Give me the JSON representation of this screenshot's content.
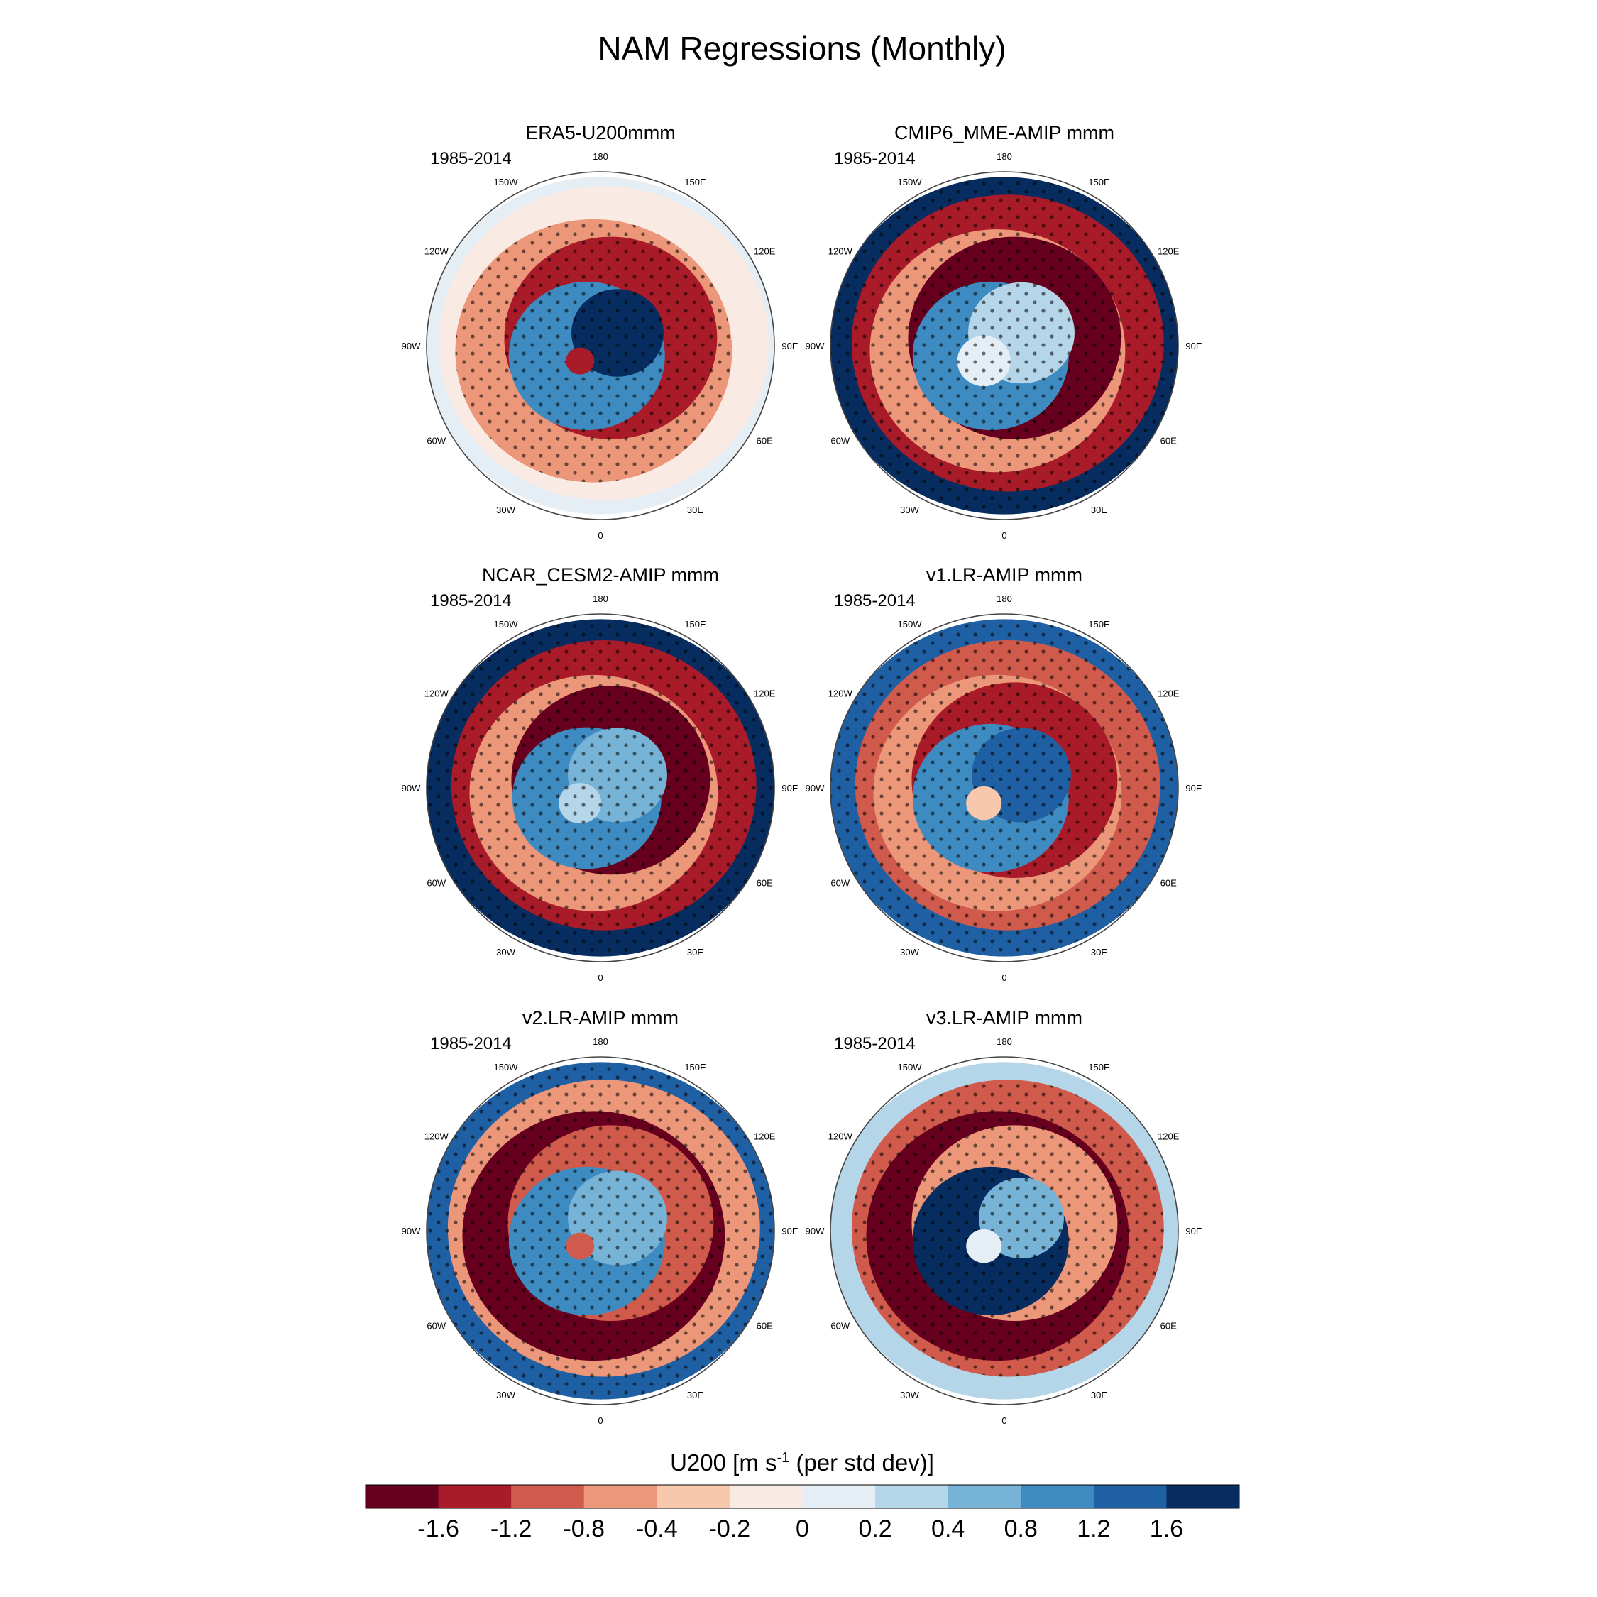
{
  "chart_data": {
    "type": "heatmap",
    "projection": "north-polar-stereographic",
    "title": "NAM Regressions (Monthly)",
    "panels": [
      {
        "title": "ERA5-U200mmm",
        "period": "1985-2014"
      },
      {
        "title": "CMIP6_MME-AMIP  mmm",
        "period": "1985-2014"
      },
      {
        "title": "NCAR_CESM2-AMIP  mmm",
        "period": "1985-2014"
      },
      {
        "title": "v1.LR-AMIP  mmm",
        "period": "1985-2014"
      },
      {
        "title": "v2.LR-AMIP  mmm",
        "period": "1985-2014"
      },
      {
        "title": "v3.LR-AMIP  mmm",
        "period": "1985-2014"
      }
    ],
    "longitude_labels": [
      "180",
      "150E",
      "120E",
      "90E",
      "60E",
      "30E",
      "0",
      "30W",
      "60W",
      "90W",
      "120W",
      "150W"
    ],
    "colorbar": {
      "title_main": "U200 [m s",
      "title_sup": "-1",
      "title_tail": " (per std dev)]",
      "tick_labels": [
        "-1.6",
        "-1.2",
        "-0.8",
        "-0.4",
        "-0.2",
        "0",
        "0.2",
        "0.4",
        "0.8",
        "1.2",
        "1.6"
      ],
      "levels": [
        -1.6,
        -1.2,
        -0.8,
        -0.4,
        -0.2,
        0,
        0.2,
        0.4,
        0.8,
        1.2,
        1.6
      ],
      "colors": [
        "#67001f",
        "#a91b29",
        "#d05a4c",
        "#ec9779",
        "#f8c8ad",
        "#faeae4",
        "#e4eef4",
        "#b5d6e8",
        "#77b3d6",
        "#3d8bc1",
        "#1f5fa3",
        "#072c5f"
      ]
    },
    "stippling": "dots mark statistically significant regions"
  }
}
